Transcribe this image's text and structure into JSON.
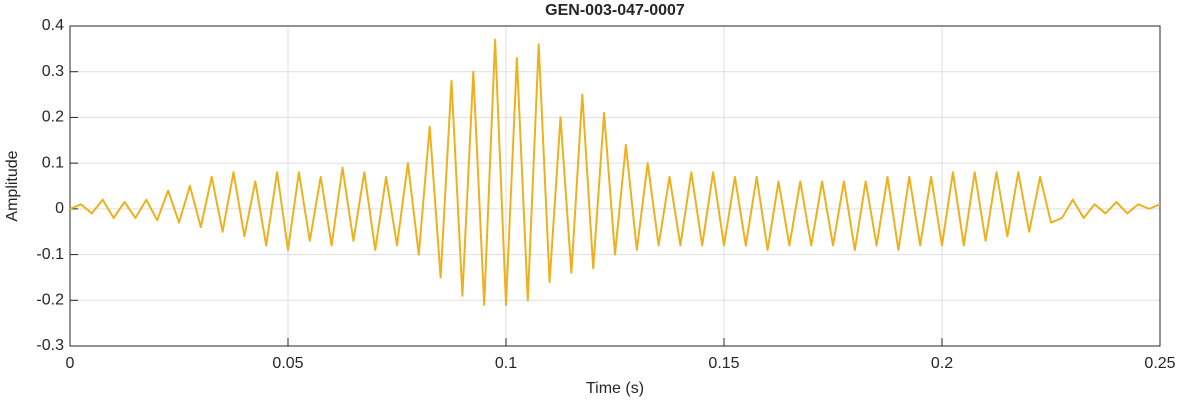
{
  "chart_data": {
    "type": "line",
    "title": "GEN-003-047-0007",
    "xlabel": "Time (s)",
    "ylabel": "Amplitude",
    "color": "#EDB120",
    "grid": true,
    "xlim": [
      0,
      0.25
    ],
    "xticks": [
      0,
      0.05,
      0.1,
      0.15,
      0.2,
      0.25
    ],
    "ylim": [
      -0.3,
      0.4
    ],
    "yticks": [
      -0.3,
      -0.2,
      -0.1,
      0,
      0.1,
      0.2,
      0.3,
      0.4
    ],
    "x": [
      0,
      0.0025,
      0.005,
      0.0075,
      0.01,
      0.0125,
      0.015,
      0.0175,
      0.02,
      0.0225,
      0.025,
      0.0275,
      0.03,
      0.0325,
      0.035,
      0.0375,
      0.04,
      0.0425,
      0.045,
      0.0475,
      0.05,
      0.0525,
      0.055,
      0.0575,
      0.06,
      0.0625,
      0.065,
      0.0675,
      0.07,
      0.0725,
      0.075,
      0.0775,
      0.08,
      0.0825,
      0.085,
      0.0875,
      0.09,
      0.0925,
      0.095,
      0.0975,
      0.1,
      0.1025,
      0.105,
      0.1075,
      0.11,
      0.1125,
      0.115,
      0.1175,
      0.12,
      0.1225,
      0.125,
      0.1275,
      0.13,
      0.1325,
      0.135,
      0.1375,
      0.14,
      0.1425,
      0.145,
      0.1475,
      0.15,
      0.1525,
      0.155,
      0.1575,
      0.16,
      0.1625,
      0.165,
      0.1675,
      0.17,
      0.1725,
      0.175,
      0.1775,
      0.18,
      0.1825,
      0.185,
      0.1875,
      0.19,
      0.1925,
      0.195,
      0.1975,
      0.2,
      0.2025,
      0.205,
      0.2075,
      0.21,
      0.2125,
      0.215,
      0.2175,
      0.22,
      0.2225,
      0.225,
      0.2275,
      0.23,
      0.2325,
      0.235,
      0.2375,
      0.24,
      0.2425,
      0.245,
      0.2475,
      0.25
    ],
    "values": [
      0,
      0.01,
      -0.01,
      0.02,
      -0.02,
      0.015,
      -0.02,
      0.02,
      -0.025,
      0.04,
      -0.03,
      0.05,
      -0.04,
      0.07,
      -0.05,
      0.08,
      -0.06,
      0.06,
      -0.08,
      0.08,
      -0.09,
      0.08,
      -0.07,
      0.07,
      -0.08,
      0.09,
      -0.07,
      0.08,
      -0.09,
      0.07,
      -0.08,
      0.1,
      -0.1,
      0.18,
      -0.15,
      0.28,
      -0.19,
      0.3,
      -0.21,
      0.37,
      -0.21,
      0.33,
      -0.2,
      0.36,
      -0.16,
      0.2,
      -0.14,
      0.25,
      -0.13,
      0.21,
      -0.1,
      0.14,
      -0.09,
      0.1,
      -0.08,
      0.07,
      -0.08,
      0.08,
      -0.08,
      0.08,
      -0.08,
      0.07,
      -0.08,
      0.07,
      -0.09,
      0.06,
      -0.08,
      0.06,
      -0.08,
      0.06,
      -0.08,
      0.06,
      -0.09,
      0.06,
      -0.08,
      0.07,
      -0.09,
      0.07,
      -0.08,
      0.07,
      -0.08,
      0.08,
      -0.08,
      0.08,
      -0.07,
      0.08,
      -0.06,
      0.08,
      -0.05,
      0.07,
      -0.03,
      -0.02,
      0.02,
      -0.02,
      0.01,
      -0.01,
      0.015,
      -0.01,
      0.01,
      0,
      0.01
    ]
  }
}
